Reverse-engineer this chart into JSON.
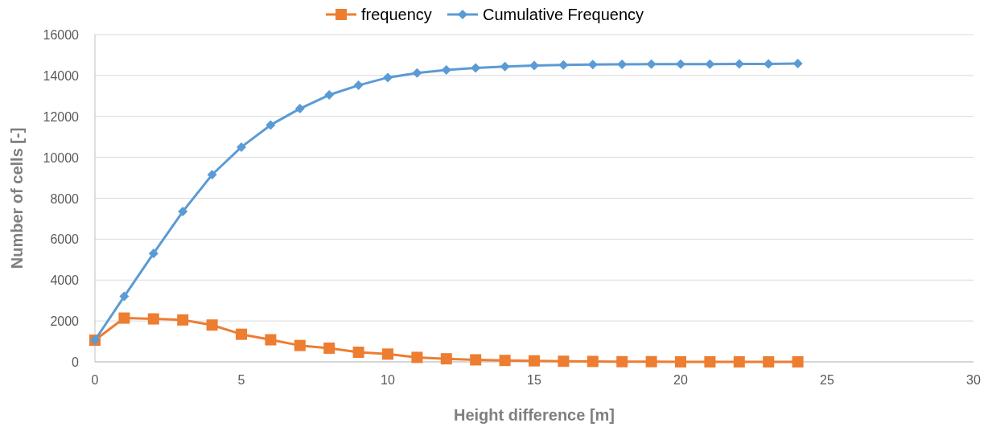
{
  "chart_data": {
    "type": "line",
    "xlabel": "Height difference [m]",
    "ylabel": "Number of cells [-]",
    "x": [
      0,
      1,
      2,
      3,
      4,
      5,
      6,
      7,
      8,
      9,
      10,
      11,
      12,
      13,
      14,
      15,
      16,
      17,
      18,
      19,
      20,
      21,
      22,
      23,
      24
    ],
    "series": [
      {
        "name": "frequency",
        "color": "#ed7d31",
        "marker": "square",
        "values": [
          1060,
          2140,
          2100,
          2050,
          1800,
          1350,
          1080,
          800,
          670,
          470,
          380,
          220,
          150,
          100,
          70,
          50,
          30,
          20,
          10,
          10,
          0,
          0,
          0,
          0,
          0
        ]
      },
      {
        "name": "Cumulative Frequency",
        "color": "#5b9bd5",
        "marker": "diamond",
        "values": [
          1060,
          3200,
          5300,
          7350,
          9150,
          10500,
          11580,
          12380,
          13050,
          13520,
          13900,
          14120,
          14270,
          14370,
          14440,
          14490,
          14520,
          14540,
          14550,
          14560,
          14560,
          14560,
          14570,
          14570,
          14580
        ]
      }
    ],
    "xlim": [
      0,
      30
    ],
    "xticks": [
      0,
      5,
      10,
      15,
      20,
      25,
      30
    ],
    "ylim": [
      0,
      16000
    ],
    "yticks": [
      0,
      2000,
      4000,
      6000,
      8000,
      10000,
      12000,
      14000,
      16000
    ],
    "grid": "y",
    "legend": "top",
    "line_style": "solid"
  }
}
